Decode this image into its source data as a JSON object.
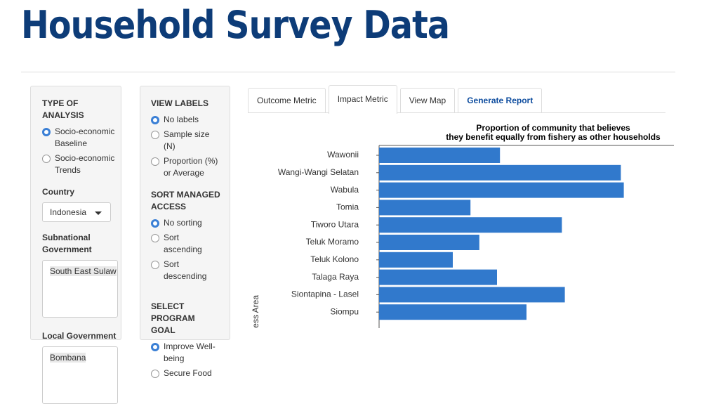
{
  "header": {
    "title": "Household Survey Data"
  },
  "panel_analysis": {
    "type_of_analysis": {
      "label": "TYPE OF ANALYSIS",
      "options": [
        "Socio-economic Baseline",
        "Socio-economic Trends"
      ],
      "selected": 0
    },
    "country": {
      "label": "Country",
      "value": "Indonesia"
    },
    "subnational": {
      "label": "Subnational Government",
      "value": "South East Sulaw"
    },
    "local": {
      "label": "Local Government",
      "value": "Bombana"
    }
  },
  "panel_options": {
    "view_labels": {
      "label": "VIEW LABELS",
      "options": [
        "No labels",
        "Sample size (N)",
        "Proportion (%) or Average"
      ],
      "selected": 0
    },
    "sort": {
      "label": "SORT MANAGED ACCESS",
      "options": [
        "No sorting",
        "Sort ascending",
        "Sort descending"
      ],
      "selected": 0
    },
    "goal": {
      "label": "SELECT PROGRAM GOAL",
      "options": [
        "Improve Well-being",
        "Secure Food"
      ],
      "selected": 0
    }
  },
  "tabs": {
    "items": [
      "Outcome Metric",
      "Impact Metric",
      "View Map",
      "Generate Report"
    ],
    "active": 1
  },
  "chart_data": {
    "type": "hbar",
    "title": [
      "Proportion of community that believes",
      "they benefit equally from fishery as other households"
    ],
    "y_label": "ess Area",
    "categories": [
      "Wawonii",
      "Wangi-Wangi Selatan",
      "Wabula",
      "Tomia",
      "Tiworo Utara",
      "Teluk Moramo",
      "Teluk Kolono",
      "Talaga Raya",
      "Siontapina - Lasel",
      "Siompu"
    ],
    "values": [
      41,
      82,
      83,
      31,
      62,
      34,
      25,
      40,
      63,
      50
    ],
    "color": "#3179cc",
    "xlim": [
      0,
      100
    ]
  }
}
